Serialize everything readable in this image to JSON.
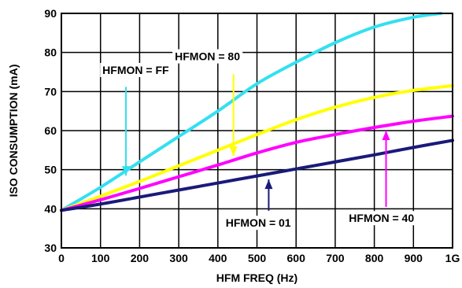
{
  "chart_data": {
    "type": "line",
    "xlabel": "HFM FREQ (Hz)",
    "ylabel": "ISO CONSUMPTION (mA)",
    "xlim": [
      0,
      1000
    ],
    "ylim": [
      30,
      90
    ],
    "grid": true,
    "x_ticks": [
      0,
      100,
      200,
      300,
      400,
      500,
      600,
      700,
      800,
      900,
      1000
    ],
    "x_tick_labels": [
      "0",
      "100",
      "200",
      "300",
      "400",
      "500",
      "600",
      "700",
      "800",
      "900",
      "1G"
    ],
    "y_ticks": [
      30,
      40,
      50,
      60,
      70,
      80,
      90
    ],
    "y_tick_labels": [
      "30",
      "40",
      "50",
      "60",
      "70",
      "80",
      "90"
    ],
    "series": [
      {
        "name": "HFMON = FF",
        "color": "#33e0f0",
        "x": [
          0,
          100,
          200,
          300,
          400,
          500,
          600,
          700,
          800,
          900,
          970
        ],
        "y": [
          39.6,
          45.5,
          52,
          58.5,
          65,
          72,
          77.5,
          82.5,
          86.5,
          89,
          90
        ]
      },
      {
        "name": "HFMON = 80",
        "color": "#ffff00",
        "x": [
          0,
          100,
          200,
          300,
          400,
          500,
          600,
          700,
          800,
          900,
          1000
        ],
        "y": [
          39.6,
          43.2,
          47,
          51,
          55,
          59,
          62.8,
          66,
          68.5,
          70.3,
          71.5
        ]
      },
      {
        "name": "HFMON = 40",
        "color": "#ff00ff",
        "x": [
          0,
          100,
          200,
          300,
          400,
          500,
          600,
          700,
          800,
          900,
          1000
        ],
        "y": [
          39.6,
          42.3,
          45.2,
          48.2,
          51.2,
          54.3,
          57,
          59,
          60.8,
          62.4,
          63.7
        ]
      },
      {
        "name": "HFMON = 01",
        "color": "#1a1a7a",
        "x": [
          0,
          100,
          200,
          300,
          400,
          500,
          600,
          700,
          800,
          900,
          1000
        ],
        "y": [
          39.6,
          41.2,
          43,
          44.8,
          46.6,
          48.4,
          50.2,
          52,
          53.8,
          55.7,
          57.5
        ]
      }
    ],
    "annotations": [
      {
        "text": "HFMON = FF",
        "series": "HFMON = FF",
        "label_x": 105,
        "label_y": 74.5,
        "arrow_from": [
          165,
          71.2
        ],
        "arrow_to": [
          165,
          48.5
        ]
      },
      {
        "text": "HFMON = 80",
        "series": "HFMON = 80",
        "label_x": 290,
        "label_y": 78,
        "arrow_from": [
          440,
          74.5
        ],
        "arrow_to": [
          440,
          53.5
        ]
      },
      {
        "text": "HFMON = 01",
        "series": "HFMON = 01",
        "label_x": 420,
        "label_y": 35.4,
        "arrow_from": [
          530,
          39.5
        ],
        "arrow_to": [
          530,
          47.5
        ]
      },
      {
        "text": "HFMON = 40",
        "series": "HFMON = 40",
        "label_x": 735,
        "label_y": 36.6,
        "arrow_from": [
          830,
          40.5
        ],
        "arrow_to": [
          830,
          60
        ]
      }
    ]
  }
}
